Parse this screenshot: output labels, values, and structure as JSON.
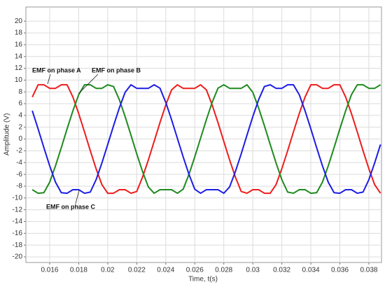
{
  "chart_data": {
    "type": "line",
    "xlabel": "Time, t(s)",
    "ylabel": "Amplitude (V)",
    "x": [
      0.0148,
      0.0152,
      0.0156,
      0.016,
      0.0164,
      0.0168,
      0.0172,
      0.0176,
      0.018,
      0.0184,
      0.0188,
      0.0192,
      0.0196,
      0.02,
      0.0204,
      0.0208,
      0.0212,
      0.0216,
      0.022,
      0.0224,
      0.0228,
      0.0232,
      0.0236,
      0.024,
      0.0244,
      0.0248,
      0.0252,
      0.0256,
      0.026,
      0.0264,
      0.0268,
      0.0272,
      0.0276,
      0.028,
      0.0284,
      0.0288,
      0.0292,
      0.0296,
      0.03,
      0.0304,
      0.0308,
      0.0312,
      0.0316,
      0.032,
      0.0324,
      0.0328,
      0.0332,
      0.0336,
      0.034,
      0.0344,
      0.0348,
      0.0352,
      0.0356,
      0.036,
      0.0364,
      0.0368,
      0.0372,
      0.0376,
      0.038,
      0.0384,
      0.0388
    ],
    "series": [
      {
        "name": "EMF on phase A",
        "color": "#ee1c1c",
        "values": [
          7.12,
          9.2,
          9.2,
          8.6,
          8.6,
          9.2,
          9.2,
          7.12,
          4.31,
          1.2,
          -2.0,
          -5.05,
          -7.75,
          -9.2,
          -9.2,
          -8.6,
          -8.6,
          -9.2,
          -8.9,
          -6.46,
          -3.55,
          -0.4,
          2.78,
          5.77,
          8.34,
          9.2,
          8.6,
          8.6,
          8.6,
          9.2,
          8.34,
          5.77,
          2.78,
          -0.4,
          -3.55,
          -6.46,
          -8.9,
          -9.2,
          -8.6,
          -8.6,
          -9.2,
          -9.2,
          -7.75,
          -5.05,
          -2.0,
          1.2,
          4.31,
          7.12,
          9.2,
          9.2,
          8.6,
          8.6,
          9.2,
          9.2,
          7.12,
          4.31,
          1.2,
          -2.0,
          -5.05,
          -7.75,
          -9.2
        ]
      },
      {
        "name": "EMF on phase B",
        "color": "#1e8a1e",
        "values": [
          -8.6,
          -9.2,
          -9.1,
          -7.32,
          -4.55,
          -1.47,
          1.73,
          4.8,
          7.53,
          9.2,
          9.2,
          8.6,
          8.6,
          9.2,
          8.91,
          6.67,
          3.8,
          0.67,
          -2.52,
          -5.52,
          -8.13,
          -9.2,
          -8.6,
          -8.6,
          -8.6,
          -9.2,
          -8.52,
          -5.99,
          -3.03,
          0.13,
          3.29,
          6.22,
          8.63,
          9.2,
          8.6,
          8.6,
          8.6,
          9.2,
          7.93,
          5.28,
          2.25,
          -0.93,
          -4.05,
          -6.89,
          -9.0,
          -9.2,
          -8.6,
          -8.6,
          -9.2,
          -9.1,
          -7.32,
          -4.55,
          -1.47,
          1.73,
          4.8,
          7.53,
          9.2,
          9.2,
          8.6,
          8.6,
          9.2
        ]
      },
      {
        "name": "EMF on phase C",
        "color": "#1c1ce6",
        "values": [
          4.8,
          1.73,
          -1.47,
          -4.55,
          -7.32,
          -9.1,
          -9.2,
          -8.6,
          -8.6,
          -9.2,
          -9.0,
          -6.89,
          -4.05,
          -0.93,
          2.25,
          5.28,
          7.93,
          9.2,
          8.6,
          8.6,
          8.6,
          9.2,
          8.63,
          6.22,
          3.29,
          0.13,
          -3.03,
          -5.99,
          -8.52,
          -9.2,
          -8.6,
          -8.6,
          -8.6,
          -9.2,
          -8.13,
          -5.52,
          -2.52,
          0.67,
          3.8,
          6.67,
          8.91,
          9.2,
          8.6,
          8.6,
          9.2,
          9.2,
          7.53,
          4.8,
          1.73,
          -1.47,
          -4.55,
          -7.32,
          -9.1,
          -9.2,
          -8.6,
          -8.6,
          -9.2,
          -9.0,
          -6.89,
          -4.05,
          -0.93
        ]
      }
    ],
    "xlim": [
      0.01436,
      0.03887
    ],
    "xticks": [
      0.016,
      0.018,
      0.02,
      0.022,
      0.024,
      0.026,
      0.028,
      0.03,
      0.032,
      0.034,
      0.036,
      0.038
    ],
    "ylim": [
      -20.95,
      22.4
    ],
    "yticks": [
      -20,
      -18,
      -16,
      -14,
      -12,
      -10,
      -8,
      -6,
      -4,
      -2,
      0,
      2,
      4,
      6,
      8,
      10,
      12,
      14,
      16,
      18,
      20
    ],
    "grid": true
  }
}
